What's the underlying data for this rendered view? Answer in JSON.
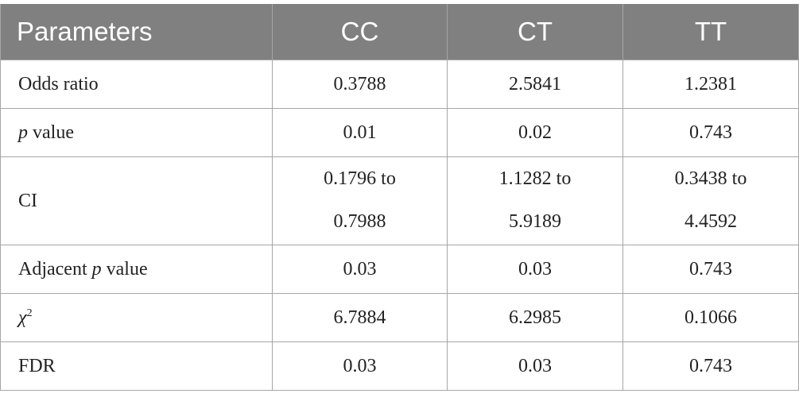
{
  "table": {
    "header": [
      "Parameters",
      "CC",
      "CT",
      "TT"
    ],
    "rows": [
      [
        [
          "Odds ratio"
        ],
        [
          "0.3788"
        ],
        [
          "2.5841"
        ],
        [
          "1.2381"
        ]
      ],
      [
        [
          "p",
          " value"
        ],
        [
          "0.01"
        ],
        [
          "0.02"
        ],
        [
          "0.743"
        ]
      ],
      [
        [
          "CI"
        ],
        [
          "0.1796 to",
          "0.7988"
        ],
        [
          "1.1282 to",
          "5.9189"
        ],
        [
          "0.3438 to",
          "4.4592"
        ]
      ],
      [
        [
          "Adjacent ",
          "p",
          " value"
        ],
        [
          "0.03"
        ],
        [
          "0.03"
        ],
        [
          "0.743"
        ]
      ],
      [
        [
          "χ",
          "2"
        ],
        [
          "6.7884"
        ],
        [
          "6.2985"
        ],
        [
          "0.1066"
        ]
      ],
      [
        [
          "FDR"
        ],
        [
          "0.03"
        ],
        [
          "0.03"
        ],
        [
          "0.743"
        ]
      ]
    ]
  }
}
